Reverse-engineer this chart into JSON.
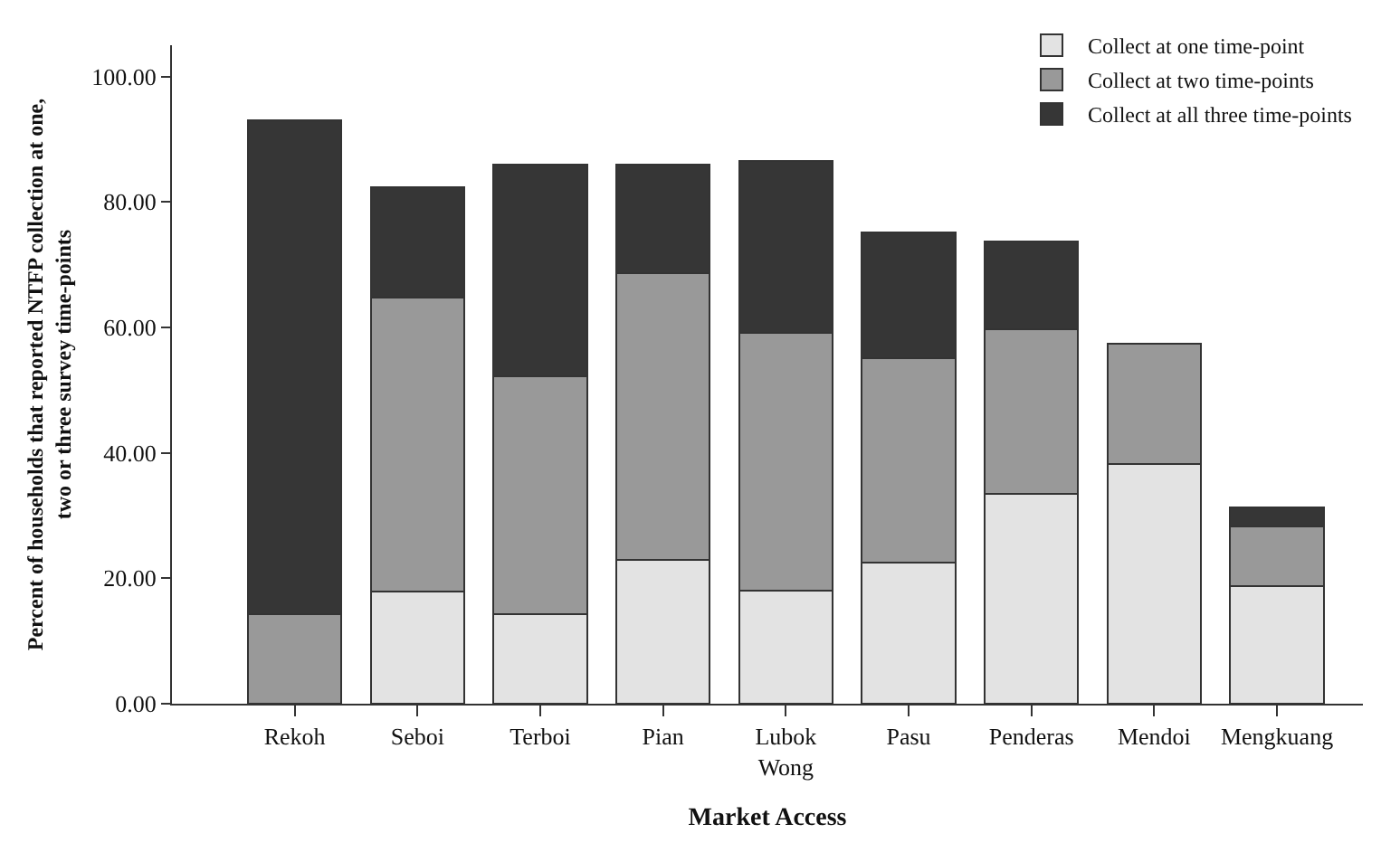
{
  "chart_data": {
    "type": "bar",
    "stacked": true,
    "xlabel": "Market Access",
    "ylabel": "Percent of households that reported NTFP collection at one, two or three survey time-points",
    "categories": [
      "Rekoh",
      "Seboi",
      "Terboi",
      "Pian",
      "Lubok Wong",
      "Pasu",
      "Penderas",
      "Mendoi",
      "Mengkuang"
    ],
    "series": [
      {
        "name": "Collect at one time-point",
        "color": "#e3e3e3",
        "values": [
          0,
          17.9,
          14.3,
          22.9,
          18.1,
          22.5,
          33.5,
          38.2,
          18.7
        ]
      },
      {
        "name": "Collect at two time-points",
        "color": "#999999",
        "values": [
          14.3,
          46.8,
          37.9,
          45.7,
          41.1,
          32.6,
          26.2,
          19.2,
          9.5
        ]
      },
      {
        "name": "Collect at all three time-points",
        "color": "#363636",
        "values": [
          78.8,
          17.7,
          33.7,
          17.3,
          27.3,
          20.1,
          14.0,
          0,
          3.1
        ]
      }
    ],
    "ylim": [
      0,
      105
    ],
    "yticks": [
      {
        "value": 0,
        "label": "0.00"
      },
      {
        "value": 20,
        "label": "20.00"
      },
      {
        "value": 40,
        "label": "40.00"
      },
      {
        "value": 60,
        "label": "60.00"
      },
      {
        "value": 80,
        "label": "80.00"
      },
      {
        "value": 100,
        "label": "100.00"
      }
    ],
    "legend": "top right"
  }
}
